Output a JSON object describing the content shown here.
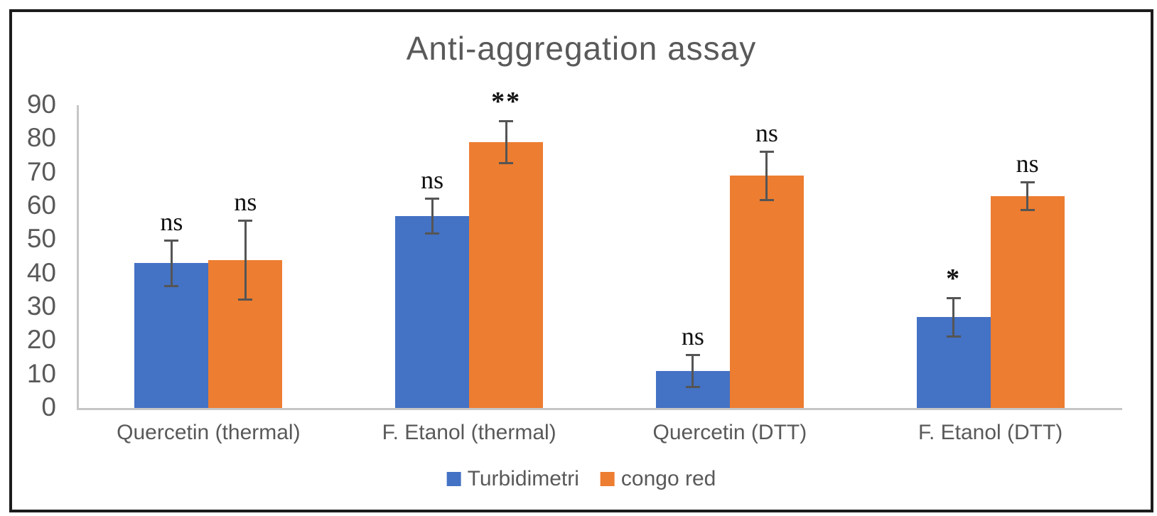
{
  "chart_data": {
    "type": "bar",
    "title": "Anti-aggregation assay",
    "categories": [
      "Quercetin (thermal)",
      "F. Etanol (thermal)",
      "Quercetin (DTT)",
      "F. Etanol (DTT)"
    ],
    "series": [
      {
        "name": "Turbidimetri",
        "color": "#4472C4",
        "values": [
          43,
          57,
          11,
          27
        ],
        "errors": [
          7,
          5.5,
          5,
          6
        ],
        "significance": [
          "ns",
          "ns",
          "ns",
          "*"
        ]
      },
      {
        "name": "congo red",
        "color": "#ED7D31",
        "values": [
          44,
          79,
          69,
          63
        ],
        "errors": [
          12,
          6.5,
          7.5,
          4.5
        ],
        "significance": [
          "ns",
          "**",
          "ns",
          "ns"
        ]
      }
    ],
    "xlabel": "",
    "ylabel": "",
    "ylim": [
      0,
      90
    ],
    "yticks": [
      0,
      10,
      20,
      30,
      40,
      50,
      60,
      70,
      80,
      90
    ],
    "grid": false,
    "legend_position": "bottom",
    "error_bar_color": "#555555",
    "axis_color": "#c6c6c6",
    "text_color": "#595959"
  }
}
